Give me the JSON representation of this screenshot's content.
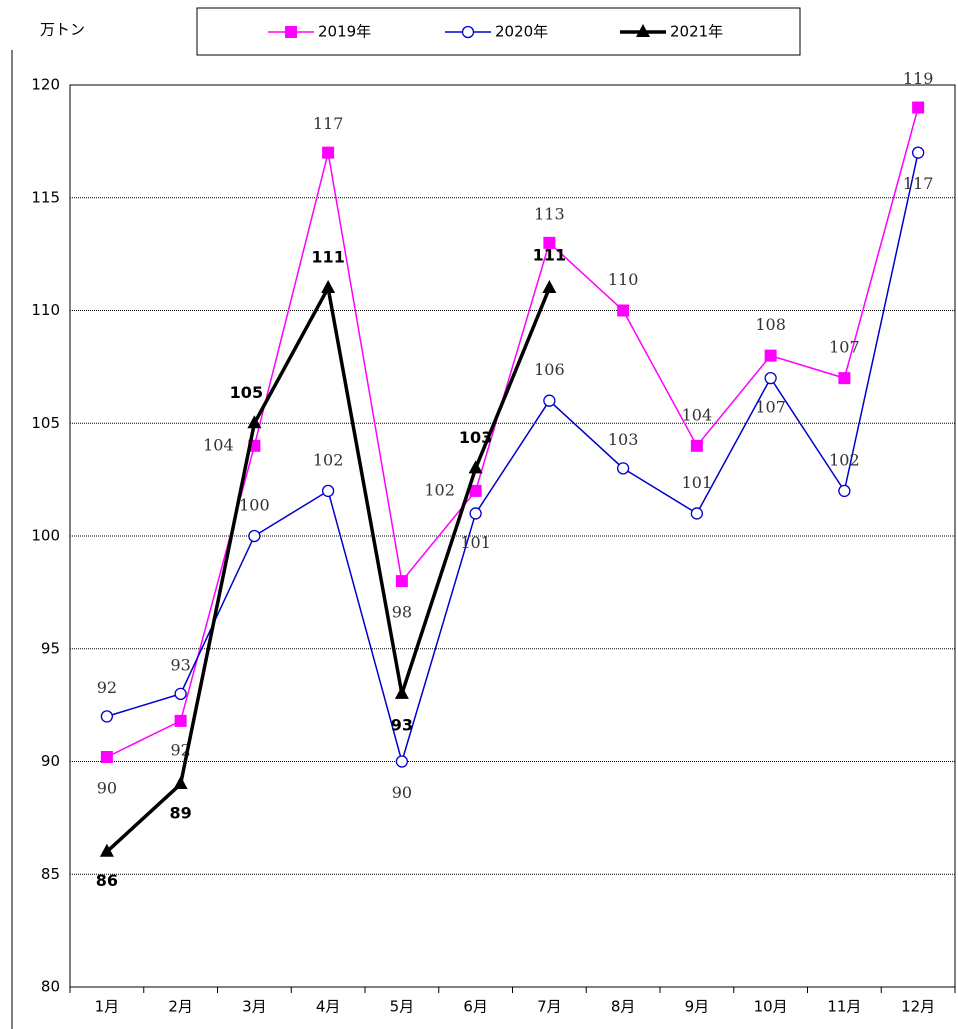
{
  "chart_data": {
    "type": "line",
    "y_axis_label": "万トン",
    "categories": [
      "1月",
      "2月",
      "3月",
      "4月",
      "5月",
      "6月",
      "7月",
      "8月",
      "9月",
      "10月",
      "11月",
      "12月"
    ],
    "series": [
      {
        "name": "2019年",
        "color": "#ff00ff",
        "marker": "square",
        "values": [
          90.2,
          91.8,
          104,
          117,
          98,
          102,
          113,
          110,
          104,
          108,
          107,
          119
        ],
        "value_labels": [
          "90",
          "92",
          "104",
          "117",
          "98",
          "102",
          "113",
          "110",
          "104",
          "108",
          "107",
          "119"
        ]
      },
      {
        "name": "2020年",
        "color": "#0000cc",
        "marker": "circle",
        "values": [
          92,
          93,
          100,
          102,
          90,
          101,
          106,
          103,
          101,
          107,
          102,
          117
        ]
      },
      {
        "name": "2021年",
        "color": "#000000",
        "marker": "triangle",
        "values": [
          86,
          89,
          105,
          111,
          93,
          103,
          111,
          null,
          null,
          null,
          null,
          null
        ]
      }
    ],
    "ylim": [
      80,
      120
    ],
    "yticks": [
      80,
      85,
      90,
      95,
      100,
      105,
      110,
      115,
      120
    ],
    "grid": true
  }
}
